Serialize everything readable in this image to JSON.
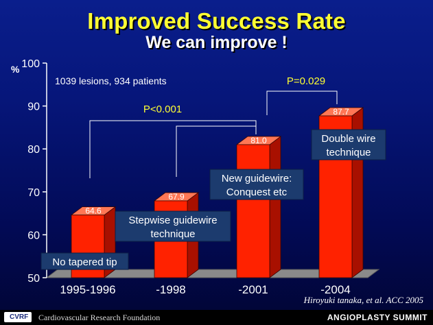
{
  "slide": {
    "title": "Improved Success Rate",
    "subtitle": "We can improve !",
    "citation": "Hiroyuki tanaka, et al.  ACC 2005",
    "footer_org": "Cardiovascular Research Foundation",
    "footer_logo": "CVRF",
    "footer_event": "ANGIOPLASTY SUMMIT"
  },
  "chart_data": {
    "type": "bar",
    "categories": [
      "1995-1996",
      "-1998",
      "-2001",
      "-2004"
    ],
    "values": [
      64.6,
      67.9,
      81.0,
      87.7
    ],
    "value_labels": [
      "64.6",
      "67.9",
      "81.0",
      "87.7"
    ],
    "ylabel": "%",
    "ylim": [
      50,
      100
    ],
    "yticks": [
      50,
      60,
      70,
      80,
      90,
      100
    ],
    "note": "1039 lesions, 934 patients",
    "bar_labels": [
      "No tapered tip",
      "Stepwise guidewire\ntechnique",
      "New guidewire:\nConquest etc",
      "Double wire\ntechnique"
    ],
    "comparisons": [
      {
        "label": "P<0.001",
        "from": [
          "1995-1996",
          "-1998"
        ],
        "to": "-2001"
      },
      {
        "label": "P=0.029",
        "from": [
          "-2001"
        ],
        "to": "-2004"
      }
    ],
    "colors": {
      "bar_front": "#ff2200",
      "bar_side": "#a81000",
      "bar_top": "#ff7755",
      "label_box": "#1c3b6e",
      "bracket_label": "#ffff33"
    },
    "grid": false
  }
}
